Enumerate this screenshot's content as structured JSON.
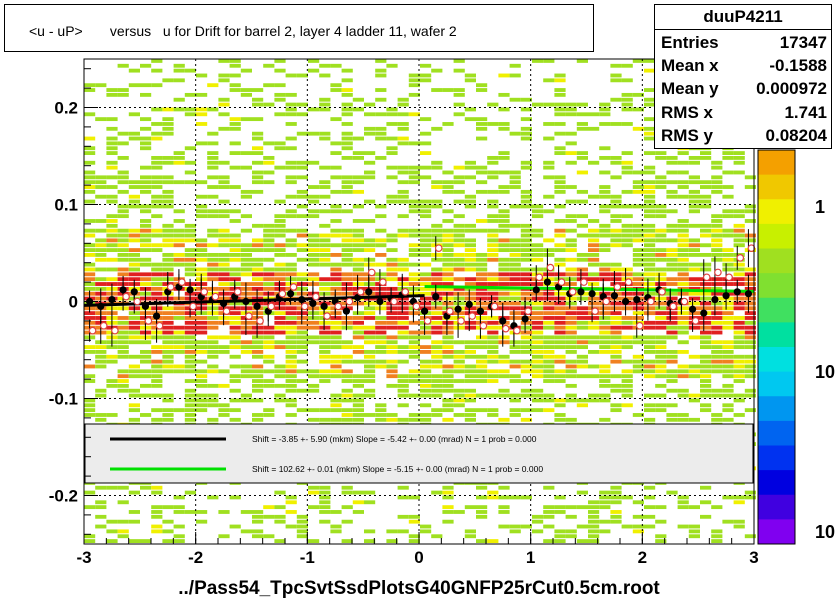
{
  "title": "<u - uP>       versus   u for Drift for barrel 2, layer 4 ladder 11, wafer 2",
  "footer": "../Pass54_TpcSvtSsdPlotsG40GNFP25rCut0.5cm.root",
  "stats": {
    "name": "duuP4211",
    "rows": [
      {
        "label": "Entries",
        "value": "17347"
      },
      {
        "label": "Mean x",
        "value": "-0.1588"
      },
      {
        "label": "Mean y",
        "value": "0.000972"
      },
      {
        "label": "RMS x",
        "value": "1.741"
      },
      {
        "label": "RMS y",
        "value": "0.08204"
      }
    ]
  },
  "legend": [
    {
      "color": "#000000",
      "text": "Shift =    -3.85 +- 5.90 (mkm) Slope =    -5.42 +- 0.00 (mrad)  N = 1 prob = 0.000"
    },
    {
      "color": "#00e000",
      "text": "Shift =   102.62 +- 0.01 (mkm) Slope =    -5.15 +- 0.00 (mrad)  N = 1 prob = 0.000"
    }
  ],
  "colors": {
    "hist_light": "#a0e020",
    "hist_yellow": "#f0f000",
    "hist_orange": "#f08020",
    "hist_red": "#e02020",
    "fit_black": "#000000",
    "fit_green": "#00e000",
    "profile_open": "#e04040"
  },
  "chart_data": {
    "type": "scatter",
    "xlim": [
      -3,
      3
    ],
    "ylim": [
      -0.25,
      0.25
    ],
    "x_ticks": [
      "-3",
      "-2",
      "-1",
      "0",
      "1",
      "2",
      "3"
    ],
    "y_ticks": [
      "-0.2",
      "-0.1",
      "0",
      "0.1",
      "0.2"
    ],
    "z_ticks": [
      "1",
      "10",
      "10"
    ],
    "grid": true,
    "series": [
      {
        "marker": "filled-circle",
        "x": [
          -2.95,
          -2.85,
          -2.75,
          -2.65,
          -2.55,
          -2.45,
          -2.35,
          -2.25,
          -2.15,
          -2.05,
          -1.95,
          -1.85,
          -1.75,
          -1.65,
          -1.55,
          -1.45,
          -1.35,
          -1.25,
          -1.15,
          -1.05,
          -0.95,
          -0.85,
          -0.75,
          -0.65,
          -0.55,
          -0.45,
          -0.35,
          -0.25,
          -0.15,
          -0.05,
          0.05,
          0.15,
          0.25,
          0.35,
          0.45,
          0.55,
          0.65,
          0.75,
          0.85,
          0.95,
          1.05,
          1.15,
          1.25,
          1.35,
          1.45,
          1.55,
          1.65,
          1.75,
          1.85,
          1.95,
          2.05,
          2.15,
          2.25,
          2.35,
          2.45,
          2.55,
          2.65,
          2.75,
          2.85,
          2.95
        ],
        "y": [
          0.0,
          -0.005,
          0.002,
          0.012,
          0.01,
          -0.005,
          -0.015,
          0.01,
          0.015,
          0.012,
          0.005,
          0.002,
          -0.002,
          0.005,
          0.0,
          -0.005,
          -0.01,
          0.005,
          0.008,
          0.002,
          -0.002,
          -0.005,
          0.0,
          -0.01,
          0.004,
          0.01,
          0.0,
          0.003,
          0.007,
          0.0,
          -0.01,
          0.005,
          -0.015,
          -0.008,
          -0.003,
          -0.01,
          -0.005,
          -0.02,
          -0.025,
          -0.018,
          0.012,
          0.02,
          0.015,
          0.008,
          0.01,
          0.008,
          0.005,
          0.006,
          0.0,
          0.002,
          0.004,
          0.012,
          -0.002,
          0.0,
          -0.008,
          -0.012,
          0.002,
          0.006,
          0.01,
          0.008
        ]
      },
      {
        "marker": "open-circle",
        "x": [
          -2.95,
          -2.85,
          -2.75,
          -2.65,
          -2.55,
          -2.45,
          -2.35,
          -2.25,
          -2.15,
          -2.05,
          -1.95,
          -1.85,
          -1.75,
          -1.65,
          -1.55,
          -1.45,
          -1.35,
          -1.25,
          -1.15,
          -1.05,
          -0.95,
          -0.85,
          -0.75,
          -0.65,
          -0.55,
          -0.45,
          -0.35,
          -0.25,
          -0.15,
          -0.05,
          0.05,
          0.15,
          0.25,
          0.35,
          0.45,
          0.55,
          0.65,
          0.75,
          0.85,
          0.95,
          1.05,
          1.15,
          1.25,
          1.35,
          1.45,
          1.55,
          1.65,
          1.75,
          1.85,
          1.95,
          2.05,
          2.15,
          2.25,
          2.35,
          2.45,
          2.55,
          2.65,
          2.75,
          2.85,
          2.95
        ],
        "y": [
          -0.03,
          -0.025,
          -0.03,
          0.005,
          0.0,
          -0.02,
          -0.025,
          0.015,
          0.02,
          -0.005,
          0.01,
          0.005,
          -0.01,
          0.01,
          -0.015,
          -0.02,
          -0.005,
          0.008,
          0.015,
          -0.005,
          0.005,
          -0.015,
          -0.005,
          0.0,
          0.01,
          0.03,
          0.02,
          0.0,
          0.01,
          -0.005,
          -0.02,
          0.055,
          -0.01,
          -0.02,
          -0.015,
          -0.025,
          -0.005,
          -0.028,
          -0.03,
          -0.01,
          0.025,
          0.035,
          0.02,
          0.01,
          0.02,
          -0.01,
          0.0,
          0.015,
          0.02,
          -0.025,
          0.0,
          0.01,
          -0.005,
          0.0,
          -0.02,
          0.025,
          0.03,
          0.025,
          0.045,
          0.055
        ]
      }
    ],
    "fits": [
      {
        "x": [
          -3,
          0.05
        ],
        "y": [
          -0.004,
          0.006
        ]
      },
      {
        "x": [
          0.05,
          3
        ],
        "y": [
          0.0155,
          0.0105
        ]
      }
    ]
  }
}
